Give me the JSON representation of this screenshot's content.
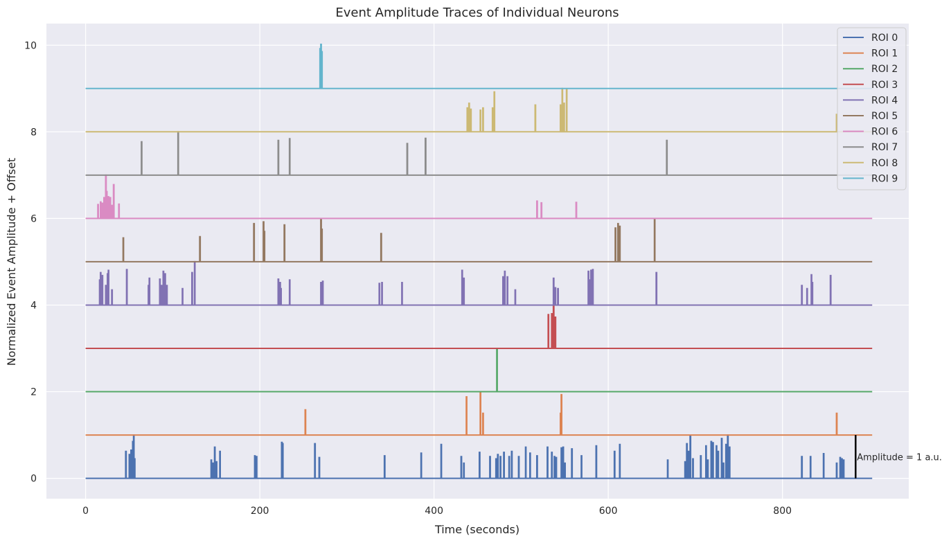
{
  "chart_data": {
    "type": "line",
    "title": "Event Amplitude Traces of Individual Neurons",
    "xlabel": "Time (seconds)",
    "ylabel": "Normalized Event Amplitude + Offset",
    "xlim": [
      -45,
      945
    ],
    "ylim": [
      -0.47,
      10.5
    ],
    "x_ticks": [
      0,
      200,
      400,
      600,
      800
    ],
    "x_tick_labels": [
      "0",
      "200",
      "400",
      "600",
      "800"
    ],
    "y_ticks": [
      0,
      2,
      4,
      6,
      8,
      10
    ],
    "y_tick_labels": [
      "0",
      "2",
      "4",
      "6",
      "8",
      "10"
    ],
    "grid": true,
    "legend_position": "top-right",
    "x_range": [
      0,
      903
    ],
    "series": [
      {
        "name": "ROI 0",
        "color": "#4c72b0",
        "offset": 0,
        "events": [
          [
            46,
            0.62
          ],
          [
            50,
            0.55
          ],
          [
            52,
            0.65
          ],
          [
            54,
            0.85
          ],
          [
            55,
            1.0
          ],
          [
            56,
            0.45
          ],
          [
            144,
            0.42
          ],
          [
            146,
            0.35
          ],
          [
            148,
            0.72
          ],
          [
            150,
            0.38
          ],
          [
            154,
            0.62
          ],
          [
            194,
            0.52
          ],
          [
            196,
            0.5
          ],
          [
            225,
            0.83
          ],
          [
            226,
            0.8
          ],
          [
            263,
            0.8
          ],
          [
            268,
            0.48
          ],
          [
            343,
            0.52
          ],
          [
            385,
            0.58
          ],
          [
            408,
            0.78
          ],
          [
            431,
            0.5
          ],
          [
            434,
            0.35
          ],
          [
            452,
            0.6
          ],
          [
            464,
            0.5
          ],
          [
            471,
            0.45
          ],
          [
            473,
            0.55
          ],
          [
            476,
            0.5
          ],
          [
            480,
            0.6
          ],
          [
            486,
            0.5
          ],
          [
            489,
            0.62
          ],
          [
            497,
            0.5
          ],
          [
            505,
            0.72
          ],
          [
            510,
            0.58
          ],
          [
            518,
            0.52
          ],
          [
            530,
            0.72
          ],
          [
            535,
            0.6
          ],
          [
            538,
            0.5
          ],
          [
            540,
            0.48
          ],
          [
            546,
            0.7
          ],
          [
            548,
            0.72
          ],
          [
            550,
            0.35
          ],
          [
            558,
            0.68
          ],
          [
            569,
            0.52
          ],
          [
            586,
            0.75
          ],
          [
            607,
            0.62
          ],
          [
            613,
            0.78
          ],
          [
            668,
            0.42
          ],
          [
            688,
            0.38
          ],
          [
            690,
            0.8
          ],
          [
            692,
            0.62
          ],
          [
            694,
            0.98
          ],
          [
            697,
            0.45
          ],
          [
            706,
            0.52
          ],
          [
            712,
            0.75
          ],
          [
            714,
            0.42
          ],
          [
            718,
            0.85
          ],
          [
            720,
            0.82
          ],
          [
            724,
            0.75
          ],
          [
            726,
            0.62
          ],
          [
            730,
            0.92
          ],
          [
            732,
            0.35
          ],
          [
            735,
            0.78
          ],
          [
            737,
            1.0
          ],
          [
            739,
            0.72
          ],
          [
            822,
            0.5
          ],
          [
            832,
            0.5
          ],
          [
            847,
            0.57
          ],
          [
            862,
            0.35
          ],
          [
            866,
            0.48
          ],
          [
            868,
            0.45
          ],
          [
            870,
            0.42
          ]
        ]
      },
      {
        "name": "ROI 1",
        "color": "#dd8452",
        "offset": 1,
        "events": [
          [
            252,
            0.58
          ],
          [
            437,
            0.88
          ],
          [
            453,
            1.0
          ],
          [
            456,
            0.5
          ],
          [
            545,
            0.5
          ],
          [
            546,
            0.93
          ],
          [
            862,
            0.5
          ]
        ]
      },
      {
        "name": "ROI 2",
        "color": "#55a868",
        "offset": 2,
        "events": [
          [
            472,
            1.0
          ]
        ]
      },
      {
        "name": "ROI 3",
        "color": "#c44e52",
        "offset": 3,
        "events": [
          [
            531,
            0.78
          ],
          [
            535,
            0.8
          ],
          [
            537,
            1.0
          ],
          [
            539,
            0.72
          ]
        ]
      },
      {
        "name": "ROI 4",
        "color": "#8172b3",
        "offset": 4,
        "events": [
          [
            16,
            0.58
          ],
          [
            17,
            0.75
          ],
          [
            19,
            0.68
          ],
          [
            23,
            0.45
          ],
          [
            25,
            0.72
          ],
          [
            26,
            0.8
          ],
          [
            30,
            0.35
          ],
          [
            47,
            0.82
          ],
          [
            72,
            0.45
          ],
          [
            73,
            0.62
          ],
          [
            85,
            0.6
          ],
          [
            87,
            0.45
          ],
          [
            89,
            0.78
          ],
          [
            91,
            0.72
          ],
          [
            93,
            0.45
          ],
          [
            111,
            0.38
          ],
          [
            122,
            0.75
          ],
          [
            125,
            1.0
          ],
          [
            221,
            0.6
          ],
          [
            223,
            0.52
          ],
          [
            224,
            0.38
          ],
          [
            234,
            0.58
          ],
          [
            270,
            0.52
          ],
          [
            272,
            0.55
          ],
          [
            337,
            0.5
          ],
          [
            340,
            0.52
          ],
          [
            363,
            0.52
          ],
          [
            432,
            0.8
          ],
          [
            434,
            0.62
          ],
          [
            479,
            0.65
          ],
          [
            481,
            0.78
          ],
          [
            484,
            0.65
          ],
          [
            493,
            0.35
          ],
          [
            537,
            0.62
          ],
          [
            539,
            0.4
          ],
          [
            542,
            0.38
          ],
          [
            577,
            0.78
          ],
          [
            578,
            0.58
          ],
          [
            580,
            0.8
          ],
          [
            582,
            0.82
          ],
          [
            655,
            0.75
          ],
          [
            822,
            0.45
          ],
          [
            828,
            0.38
          ],
          [
            833,
            0.7
          ],
          [
            834,
            0.52
          ],
          [
            855,
            0.68
          ]
        ]
      },
      {
        "name": "ROI 5",
        "color": "#937860",
        "offset": 5,
        "events": [
          [
            43,
            0.55
          ],
          [
            131,
            0.58
          ],
          [
            193,
            0.88
          ],
          [
            204,
            0.92
          ],
          [
            205,
            0.7
          ],
          [
            228,
            0.85
          ],
          [
            270,
            0.98
          ],
          [
            271,
            0.75
          ],
          [
            339,
            0.65
          ],
          [
            608,
            0.78
          ],
          [
            611,
            0.88
          ],
          [
            613,
            0.82
          ],
          [
            653,
            0.98
          ]
        ]
      },
      {
        "name": "ROI 6",
        "color": "#da8bc3",
        "offset": 6,
        "events": [
          [
            14,
            0.32
          ],
          [
            17,
            0.38
          ],
          [
            19,
            0.35
          ],
          [
            21,
            0.48
          ],
          [
            23,
            1.0
          ],
          [
            24,
            0.62
          ],
          [
            26,
            0.5
          ],
          [
            28,
            0.48
          ],
          [
            30,
            0.3
          ],
          [
            32,
            0.78
          ],
          [
            38,
            0.33
          ],
          [
            518,
            0.4
          ],
          [
            523,
            0.36
          ],
          [
            563,
            0.37
          ]
        ]
      },
      {
        "name": "ROI 7",
        "color": "#8c8c8c",
        "offset": 7,
        "events": [
          [
            64,
            0.77
          ],
          [
            106,
            1.0
          ],
          [
            221,
            0.8
          ],
          [
            234,
            0.84
          ],
          [
            369,
            0.73
          ],
          [
            390,
            0.85
          ],
          [
            667,
            0.8
          ]
        ]
      },
      {
        "name": "ROI 8",
        "color": "#ccb974",
        "offset": 8,
        "events": [
          [
            438,
            0.55
          ],
          [
            440,
            0.66
          ],
          [
            442,
            0.52
          ],
          [
            453,
            0.5
          ],
          [
            456,
            0.55
          ],
          [
            467,
            0.55
          ],
          [
            469,
            0.92
          ],
          [
            516,
            0.62
          ],
          [
            545,
            0.62
          ],
          [
            547,
            1.0
          ],
          [
            549,
            0.66
          ],
          [
            552,
            0.98
          ],
          [
            862,
            0.4
          ]
        ]
      },
      {
        "name": "ROI 9",
        "color": "#64b5cd",
        "offset": 9,
        "events": [
          [
            269,
            0.92
          ],
          [
            270,
            1.02
          ],
          [
            271,
            0.85
          ]
        ]
      }
    ],
    "scale_bar": {
      "x": 884,
      "y_from": 0,
      "y_to": 1,
      "label": "Amplitude = 1 a.u."
    }
  }
}
